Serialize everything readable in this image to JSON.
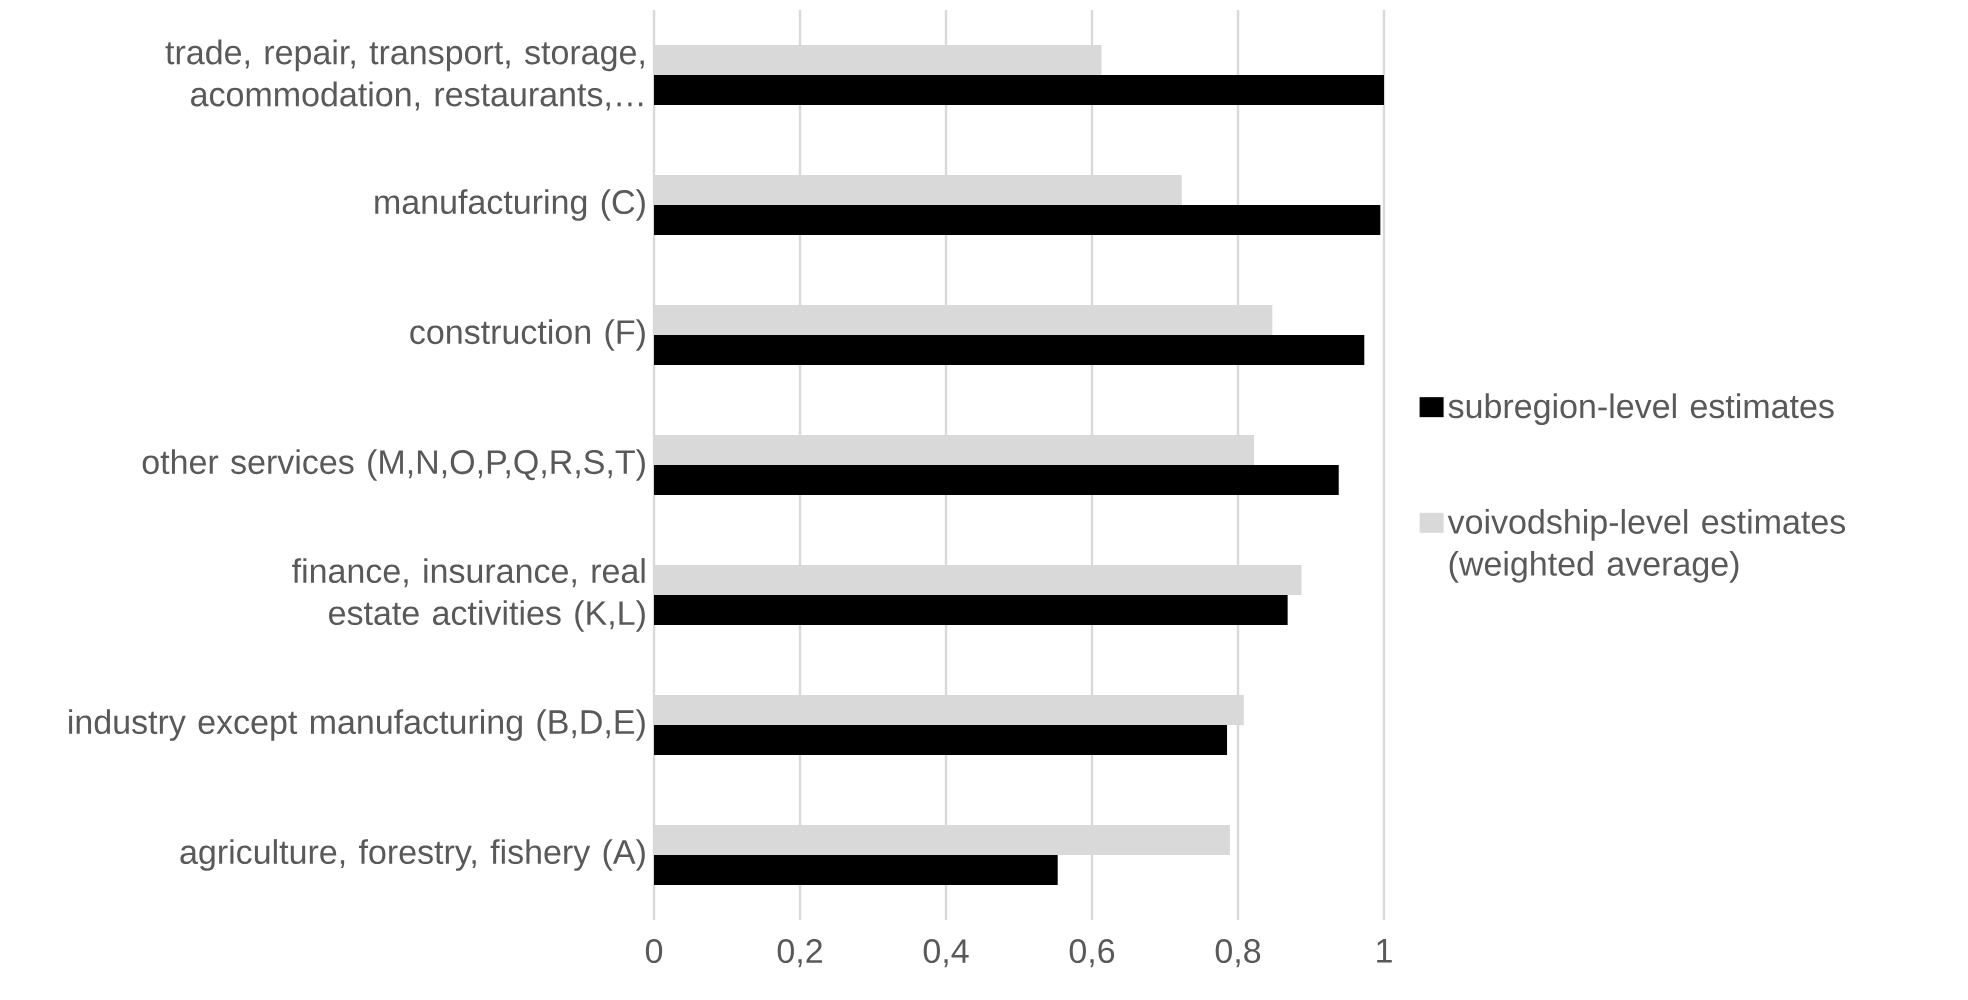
{
  "chart_data": {
    "type": "bar",
    "orientation": "horizontal",
    "categories": [
      "trade, repair, transport, storage, acommodation, restaurants,…",
      "manufacturing (C)",
      "construction (F)",
      "other services (M,N,O,P,Q,R,S,T)",
      "finance, insurance, real estate activities (K,L)",
      "industry except manufacturing (B,D,E)",
      "agriculture, forestry, fishery (A)"
    ],
    "series": [
      {
        "name": "subregion-level estimates",
        "color": "#000000",
        "values": [
          1.0,
          0.995,
          0.973,
          0.938,
          0.868,
          0.785,
          0.553
        ]
      },
      {
        "name": "voivodship-level estimates (weighted average)",
        "color": "#d9d9d9",
        "values": [
          0.613,
          0.723,
          0.847,
          0.822,
          0.887,
          0.808,
          0.789
        ]
      }
    ],
    "xlim": [
      0,
      1
    ],
    "xticks": [
      {
        "value": 0,
        "label": "0"
      },
      {
        "value": 0.2,
        "label": "0,2"
      },
      {
        "value": 0.4,
        "label": "0,4"
      },
      {
        "value": 0.6,
        "label": "0,6"
      },
      {
        "value": 0.8,
        "label": "0,8"
      },
      {
        "value": 1,
        "label": "1"
      }
    ],
    "grid": "x",
    "legend": "right"
  }
}
